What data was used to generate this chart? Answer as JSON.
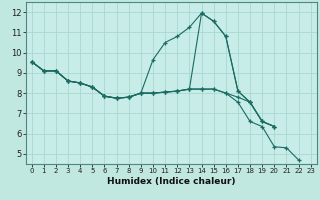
{
  "xlabel": "Humidex (Indice chaleur)",
  "bg_color": "#c0e8e0",
  "plot_bg_color": "#c8ece8",
  "grid_color": "#a8d8d0",
  "line_color": "#1a6b60",
  "border_color": "#508880",
  "xlim": [
    -0.5,
    23.5
  ],
  "ylim": [
    4.5,
    12.5
  ],
  "xticks": [
    0,
    1,
    2,
    3,
    4,
    5,
    6,
    7,
    8,
    9,
    10,
    11,
    12,
    13,
    14,
    15,
    16,
    17,
    18,
    19,
    20,
    21,
    22,
    23
  ],
  "yticks": [
    5,
    6,
    7,
    8,
    9,
    10,
    11,
    12
  ],
  "series_x": [
    [
      0,
      1,
      2,
      3,
      4,
      5,
      6,
      7,
      8,
      9,
      10,
      11,
      12,
      13,
      14,
      15,
      16,
      17,
      18,
      19,
      20
    ],
    [
      0,
      1,
      2,
      3,
      4,
      5,
      6,
      7,
      8,
      9,
      10,
      11,
      12,
      13,
      14,
      15,
      16,
      17,
      18,
      19,
      20
    ],
    [
      0,
      1,
      2,
      3,
      4,
      5,
      6,
      7,
      8,
      9,
      10,
      11,
      12,
      13,
      14,
      15,
      16,
      17,
      18,
      19,
      20
    ],
    [
      0,
      1,
      2,
      3,
      4,
      5,
      6,
      7,
      8,
      9,
      10,
      11,
      12,
      13,
      14,
      15,
      16,
      17,
      18,
      19,
      20,
      21,
      22
    ]
  ],
  "series_y": [
    [
      9.55,
      9.1,
      9.1,
      8.6,
      8.5,
      8.3,
      7.85,
      7.75,
      7.8,
      8.0,
      8.0,
      8.05,
      8.1,
      8.2,
      11.95,
      11.55,
      10.8,
      8.1,
      7.55,
      6.6,
      6.35
    ],
    [
      9.55,
      9.1,
      9.1,
      8.6,
      8.5,
      8.3,
      7.85,
      7.75,
      7.8,
      8.0,
      9.65,
      10.5,
      10.8,
      11.25,
      11.95,
      11.55,
      10.8,
      8.1,
      7.55,
      6.6,
      6.35
    ],
    [
      9.55,
      9.1,
      9.1,
      8.6,
      8.5,
      8.3,
      7.85,
      7.75,
      7.8,
      8.0,
      8.0,
      8.05,
      8.1,
      8.2,
      8.2,
      8.2,
      8.0,
      7.8,
      7.55,
      6.6,
      6.35
    ],
    [
      9.55,
      9.1,
      9.1,
      8.6,
      8.5,
      8.3,
      7.85,
      7.75,
      7.8,
      8.0,
      8.0,
      8.05,
      8.1,
      8.2,
      8.2,
      8.2,
      8.0,
      7.55,
      6.6,
      6.35,
      5.35,
      5.3,
      4.7
    ]
  ],
  "xlabel_fontsize": 6.5,
  "tick_fontsize": 5.0
}
